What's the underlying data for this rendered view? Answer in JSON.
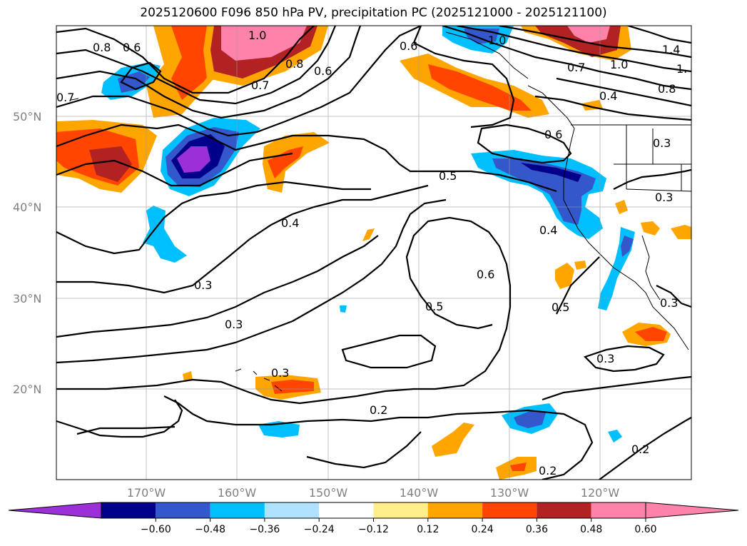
{
  "title": "2025120600 F096 850 hPa PV, precipitation PC (2025121000 - 2025121100)",
  "map": {
    "lat_labels": [
      "50°N",
      "40°N",
      "30°N",
      "20°N"
    ],
    "lon_labels": [
      "170°W",
      "160°W",
      "150°W",
      "140°W",
      "130°W",
      "120°W"
    ],
    "contour_labels": [
      "0.8",
      "0.6",
      "0.7",
      "1.0",
      "0.8",
      "0.7",
      "0.6",
      "0.6",
      "1.0",
      "0.7",
      "1.0",
      "1.4",
      "1.",
      "0.8",
      "0.4",
      "0.6",
      "0.3",
      "0.5",
      "0.3",
      "0.4",
      "0.4",
      "0.3",
      "0.3",
      "0.6",
      "0.5",
      "0.5",
      "0.3",
      "0.3",
      "0.3",
      "0.2",
      "0.2",
      "0.2"
    ]
  },
  "colorbar": {
    "ticks": [
      "−0.60",
      "−0.48",
      "−0.36",
      "−0.24",
      "−0.12",
      "0.12",
      "0.24",
      "0.36",
      "0.48",
      "0.60"
    ],
    "colors": [
      "#9b30d9",
      "#00008b",
      "#3457cc",
      "#00bfff",
      "#b0e2ff",
      "#ffffff",
      "#ffec8b",
      "#ffa500",
      "#ff4500",
      "#b22222",
      "#ff82ab",
      "#ff82ab"
    ]
  }
}
